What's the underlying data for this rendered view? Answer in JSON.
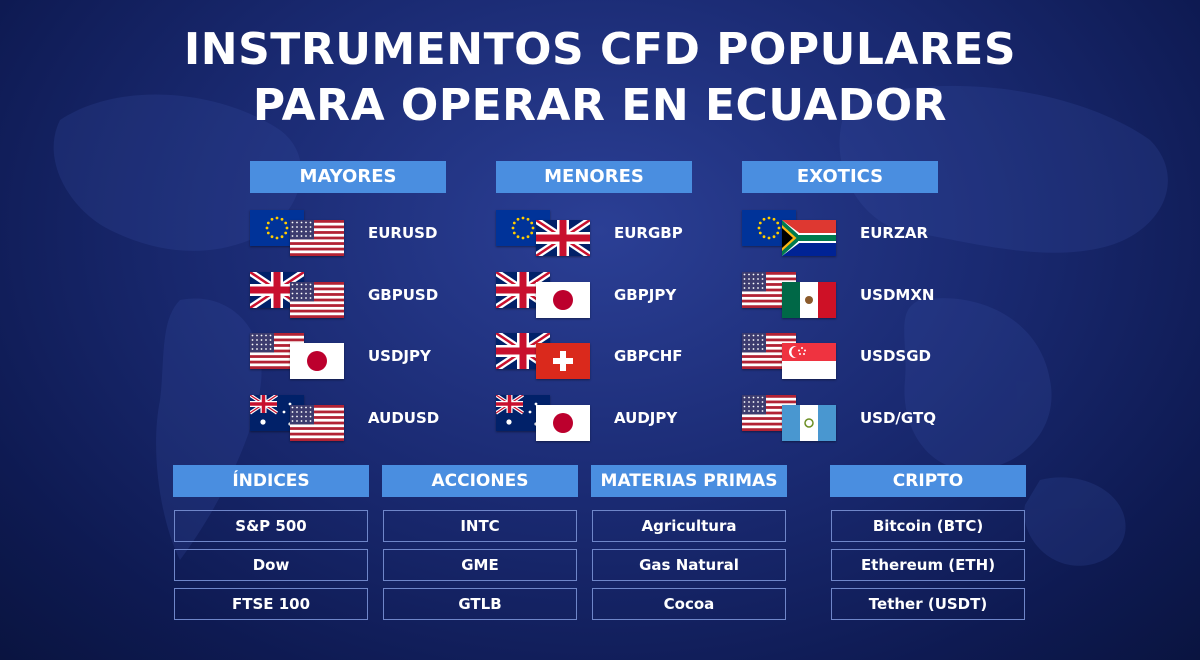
{
  "title": {
    "line1": "INSTRUMENTOS CFD POPULARES",
    "line2": "PARA OPERAR EN ECUADOR"
  },
  "forex": [
    {
      "header": "MAYORES",
      "pairs": [
        {
          "label": "EURUSD",
          "flags": [
            "eu-flag-icon",
            "us-flag-icon"
          ]
        },
        {
          "label": "GBPUSD",
          "flags": [
            "uk-flag-icon",
            "us-flag-icon"
          ]
        },
        {
          "label": "USDJPY",
          "flags": [
            "us-flag-icon",
            "jp-flag-icon"
          ]
        },
        {
          "label": "AUDUSD",
          "flags": [
            "au-flag-icon",
            "us-flag-icon"
          ]
        }
      ]
    },
    {
      "header": "MENORES",
      "pairs": [
        {
          "label": "EURGBP",
          "flags": [
            "eu-flag-icon",
            "uk-flag-icon"
          ]
        },
        {
          "label": "GBPJPY",
          "flags": [
            "uk-flag-icon",
            "jp-flag-icon"
          ]
        },
        {
          "label": "GBPCHF",
          "flags": [
            "uk-flag-icon",
            "ch-flag-icon"
          ]
        },
        {
          "label": "AUDJPY",
          "flags": [
            "au-flag-icon",
            "jp-flag-icon"
          ]
        }
      ]
    },
    {
      "header": "EXOTICS",
      "pairs": [
        {
          "label": "EURZAR",
          "flags": [
            "eu-flag-icon",
            "za-flag-icon"
          ]
        },
        {
          "label": "USDMXN",
          "flags": [
            "us-flag-icon",
            "mx-flag-icon"
          ]
        },
        {
          "label": "USDSGD",
          "flags": [
            "us-flag-icon",
            "sg-flag-icon"
          ]
        },
        {
          "label": "USD/GTQ",
          "flags": [
            "us-flag-icon",
            "gt-flag-icon"
          ]
        }
      ]
    }
  ],
  "categories": [
    {
      "header": "ÍNDICES",
      "items": [
        "S&P 500",
        "Dow",
        "FTSE 100"
      ]
    },
    {
      "header": "ACCIONES",
      "items": [
        "INTC",
        "GME",
        "GTLB"
      ]
    },
    {
      "header": "MATERIAS PRIMAS",
      "items": [
        "Agricultura",
        "Gas Natural",
        "Cocoa"
      ]
    },
    {
      "header": "CRIPTO",
      "items": [
        "Bitcoin (BTC)",
        "Ethereum (ETH)",
        "Tether (USDT)"
      ]
    }
  ],
  "colors": {
    "background": "#1a2a72",
    "header_bg": "#4a8ee0",
    "cell_border": "#6f86c9"
  }
}
